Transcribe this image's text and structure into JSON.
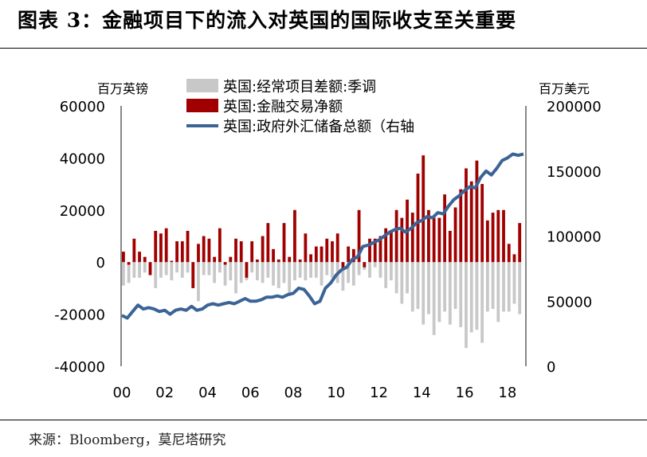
{
  "header": {
    "title": "图表 3：金融项目下的流入对英国的国际收支至关重要"
  },
  "footer": {
    "source": "来源：Bloomberg，莫尼塔研究"
  },
  "colors": {
    "current_account": "#c8c8c8",
    "financial_account": "#a00000",
    "reserves": "#3b6496",
    "axis": "#555555"
  },
  "chart_data": {
    "type": "bar",
    "title": "",
    "left_axis_label": "百万英镑",
    "right_axis_label": "百万美元",
    "ylim_left": [
      -40000,
      60000
    ],
    "ylim_right": [
      0,
      200000
    ],
    "left_ticks": [
      "60000",
      "40000",
      "20000",
      "0",
      "-20000",
      "-40000"
    ],
    "right_ticks": [
      "200000",
      "150000",
      "100000",
      "50000",
      "0"
    ],
    "x_tick_labels": [
      "00",
      "02",
      "04",
      "06",
      "08",
      "10",
      "12",
      "14",
      "16",
      "18"
    ],
    "x_range": [
      2000.0,
      2018.75
    ],
    "legend": "top-left",
    "series": [
      {
        "name": "英国:经常项目差额:季调",
        "type": "bar",
        "axis": "left",
        "x": [
          2000.0,
          2000.25,
          2000.5,
          2000.75,
          2001.0,
          2001.25,
          2001.5,
          2001.75,
          2002.0,
          2002.25,
          2002.5,
          2002.75,
          2003.0,
          2003.25,
          2003.5,
          2003.75,
          2004.0,
          2004.25,
          2004.5,
          2004.75,
          2005.0,
          2005.25,
          2005.5,
          2005.75,
          2006.0,
          2006.25,
          2006.5,
          2006.75,
          2007.0,
          2007.25,
          2007.5,
          2007.75,
          2008.0,
          2008.25,
          2008.5,
          2008.75,
          2009.0,
          2009.25,
          2009.5,
          2009.75,
          2010.0,
          2010.25,
          2010.5,
          2010.75,
          2011.0,
          2011.25,
          2011.5,
          2011.75,
          2012.0,
          2012.25,
          2012.5,
          2012.75,
          2013.0,
          2013.25,
          2013.5,
          2013.75,
          2014.0,
          2014.25,
          2014.5,
          2014.75,
          2015.0,
          2015.25,
          2015.5,
          2015.75,
          2016.0,
          2016.25,
          2016.5,
          2016.75,
          2017.0,
          2017.25,
          2017.5,
          2017.75,
          2018.0,
          2018.25,
          2018.5
        ],
        "values": [
          -9000,
          -8000,
          -6000,
          -6000,
          -4000,
          -5000,
          -10000,
          -6000,
          -5000,
          -7000,
          -4000,
          -6000,
          -4000,
          -10000,
          -15000,
          -5000,
          -5000,
          -8000,
          -4000,
          -9000,
          -7000,
          -12000,
          -8000,
          -7000,
          -4000,
          -7000,
          -8000,
          -6000,
          -9000,
          -10000,
          -8000,
          -13000,
          -7000,
          -6000,
          -7000,
          -6000,
          -6000,
          -9000,
          -5000,
          -6000,
          -8000,
          -11000,
          -8000,
          -9000,
          -5000,
          -3000,
          -6000,
          -2000,
          -6000,
          -10000,
          -7000,
          -12000,
          -16000,
          -12000,
          -19000,
          -18000,
          -24000,
          -20000,
          -28000,
          -23000,
          -19000,
          -24000,
          -18000,
          -25000,
          -33000,
          -27000,
          -26000,
          -31000,
          -19000,
          -18000,
          -23000,
          -19000,
          -19000,
          -16000,
          -20000
        ]
      },
      {
        "name": "英国:金融交易净额",
        "type": "bar",
        "axis": "left",
        "x": [
          2000.0,
          2000.25,
          2000.5,
          2000.75,
          2001.0,
          2001.25,
          2001.5,
          2001.75,
          2002.0,
          2002.25,
          2002.5,
          2002.75,
          2003.0,
          2003.25,
          2003.5,
          2003.75,
          2004.0,
          2004.25,
          2004.5,
          2004.75,
          2005.0,
          2005.25,
          2005.5,
          2005.75,
          2006.0,
          2006.25,
          2006.5,
          2006.75,
          2007.0,
          2007.25,
          2007.5,
          2007.75,
          2008.0,
          2008.25,
          2008.5,
          2008.75,
          2009.0,
          2009.25,
          2009.5,
          2009.75,
          2010.0,
          2010.25,
          2010.5,
          2010.75,
          2011.0,
          2011.25,
          2011.5,
          2011.75,
          2012.0,
          2012.25,
          2012.5,
          2012.75,
          2013.0,
          2013.25,
          2013.5,
          2013.75,
          2014.0,
          2014.25,
          2014.5,
          2014.75,
          2015.0,
          2015.25,
          2015.5,
          2015.75,
          2016.0,
          2016.25,
          2016.5,
          2016.75,
          2017.0,
          2017.25,
          2017.5,
          2017.75,
          2018.0,
          2018.25,
          2018.5
        ],
        "values": [
          4000,
          -1000,
          9000,
          4000,
          2000,
          -5000,
          12000,
          11000,
          13000,
          500,
          8000,
          8000,
          12000,
          -10000,
          7000,
          10000,
          9000,
          2000,
          13000,
          -1000,
          2000,
          9000,
          8000,
          -6000,
          8000,
          1000,
          10000,
          15000,
          5000,
          1000,
          15000,
          2000,
          20000,
          1000,
          11000,
          3000,
          6000,
          6000,
          9000,
          8000,
          11000,
          -3000,
          6000,
          5000,
          20000,
          -2000,
          9000,
          9000,
          10000,
          13000,
          12000,
          20000,
          17000,
          24000,
          19000,
          34000,
          41000,
          20000,
          17000,
          17000,
          26000,
          12000,
          21000,
          28000,
          36000,
          31000,
          39000,
          30000,
          16000,
          19000,
          20000,
          20000,
          7000,
          3000,
          15000
        ]
      },
      {
        "name": "英国:政府外汇储备总额（右轴",
        "type": "line",
        "axis": "right",
        "x": [
          2000.0,
          2000.25,
          2000.5,
          2000.75,
          2001.0,
          2001.25,
          2001.5,
          2001.75,
          2002.0,
          2002.25,
          2002.5,
          2002.75,
          2003.0,
          2003.25,
          2003.5,
          2003.75,
          2004.0,
          2004.25,
          2004.5,
          2004.75,
          2005.0,
          2005.25,
          2005.5,
          2005.75,
          2006.0,
          2006.25,
          2006.5,
          2006.75,
          2007.0,
          2007.25,
          2007.5,
          2007.75,
          2008.0,
          2008.25,
          2008.5,
          2008.75,
          2009.0,
          2009.25,
          2009.5,
          2009.75,
          2010.0,
          2010.25,
          2010.5,
          2010.75,
          2011.0,
          2011.25,
          2011.5,
          2011.75,
          2012.0,
          2012.25,
          2012.5,
          2012.75,
          2013.0,
          2013.25,
          2013.5,
          2013.75,
          2014.0,
          2014.25,
          2014.5,
          2014.75,
          2015.0,
          2015.25,
          2015.5,
          2015.75,
          2016.0,
          2016.25,
          2016.5,
          2016.75,
          2017.0,
          2017.25,
          2017.5,
          2017.75,
          2018.0,
          2018.25,
          2018.5,
          2018.75
        ],
        "values": [
          39000,
          37000,
          42000,
          47000,
          44000,
          45000,
          44000,
          42000,
          43000,
          40000,
          43000,
          44000,
          43000,
          46000,
          43000,
          44000,
          47000,
          48000,
          47000,
          48000,
          49000,
          48000,
          50000,
          52000,
          50000,
          50000,
          51000,
          53000,
          53000,
          54000,
          53000,
          55000,
          56000,
          60000,
          59000,
          54000,
          48000,
          50000,
          60000,
          64000,
          70000,
          74000,
          76000,
          82000,
          84000,
          92000,
          93000,
          95000,
          97000,
          100000,
          103000,
          105000,
          106000,
          103000,
          106000,
          110000,
          112000,
          115000,
          114000,
          118000,
          117000,
          123000,
          128000,
          131000,
          135000,
          138000,
          137000,
          145000,
          150000,
          147000,
          152000,
          158000,
          160000,
          163000,
          162000,
          163000
        ]
      }
    ]
  }
}
